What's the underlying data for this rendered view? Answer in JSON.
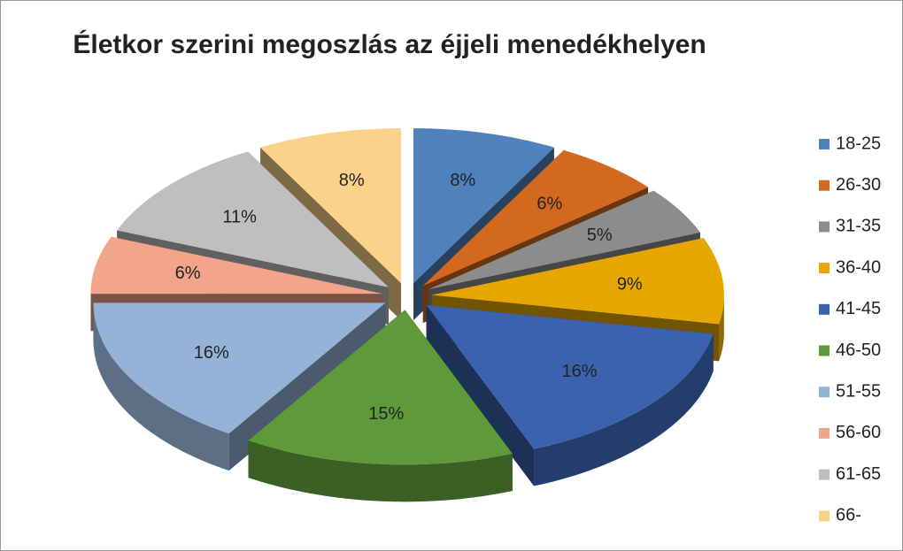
{
  "chart_data": {
    "type": "pie3d",
    "title": "Életkor szerini megoszlás az éjjeli menedékhelyen",
    "categories": [
      "18-25",
      "26-30",
      "31-35",
      "36-40",
      "41-45",
      "46-50",
      "51-55",
      "56-60",
      "61-65",
      "66-"
    ],
    "values": [
      8,
      6,
      5,
      9,
      16,
      15,
      16,
      6,
      11,
      8
    ],
    "value_labels": [
      "8%",
      "6%",
      "5%",
      "9%",
      "16%",
      "15%",
      "16%",
      "6%",
      "11%",
      "8%"
    ],
    "colors": [
      "#4f81bd",
      "#d2691e",
      "#8c8c8c",
      "#e6a800",
      "#3a62ae",
      "#5f9a3a",
      "#95b3d7",
      "#f2a58a",
      "#bfbfbf",
      "#fcd28a"
    ],
    "legend": "right"
  }
}
